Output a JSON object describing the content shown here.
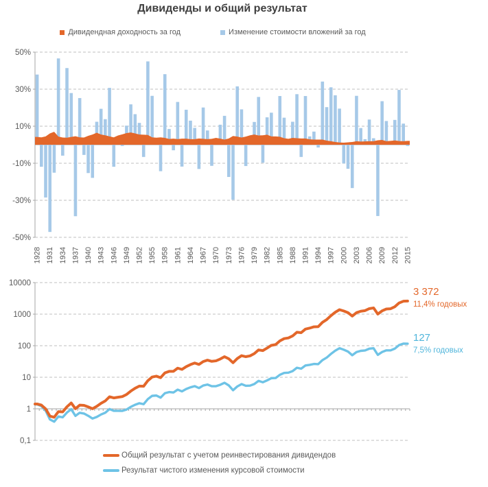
{
  "page": {
    "title": "Дивиденды и общий результат"
  },
  "colors": {
    "orange": "#e3672a",
    "bar_blue": "#a6c9e8",
    "line_blue": "#6ec3e6",
    "annotation_blue": "#4fb5db",
    "gridline": "#bfbfbf",
    "axis": "#a6a6a6",
    "text": "#595959"
  },
  "annual_chart": {
    "legend": [
      {
        "label": "Дивидендная доходность за год",
        "color": "#e3672a"
      },
      {
        "label": "Изменение стоимости вложений за год",
        "color": "#a6c9e8"
      }
    ]
  },
  "cumulative_chart": {
    "annotations": [
      {
        "value": "3 372",
        "rate": "11,4% годовых",
        "color": "#e3672a"
      },
      {
        "value": "127",
        "rate": "7,5% годовых",
        "color": "#4fb5db"
      }
    ],
    "legend": [
      {
        "label": "Общий результат с учетом реинвестирования дивидендов",
        "color": "#e3672a"
      },
      {
        "label": "Результат чистого изменения курсовой стоимости",
        "color": "#6ec3e6"
      }
    ]
  },
  "chart_data": [
    {
      "type": "bar",
      "title": "Дивиденды и общий результат",
      "start_year": 1928,
      "end_year": 2015,
      "x_tick_labels": [
        "1928",
        "1931",
        "1934",
        "1937",
        "1940",
        "1943",
        "1946",
        "1949",
        "1952",
        "1955",
        "1958",
        "1961",
        "1964",
        "1967",
        "1970",
        "1973",
        "1976",
        "1979",
        "1982",
        "1985",
        "1988",
        "1991",
        "1994",
        "1997",
        "2000",
        "2003",
        "2006",
        "2009",
        "2012",
        "2015"
      ],
      "ylim": [
        -50,
        50
      ],
      "ytick_values": [
        50,
        30,
        10,
        -10,
        -30,
        -50
      ],
      "y_tick_labels": [
        "50%",
        "30%",
        "10%",
        "-10%",
        "-30%",
        "-50%"
      ],
      "grid": "dashed-horizontal",
      "legend_position": "top",
      "series": [
        {
          "name": "Дивидендная доходность за год",
          "style": "area",
          "color": "#e3672a",
          "unit": "%",
          "values": [
            4.2,
            4.0,
            4.5,
            6.1,
            7.0,
            4.4,
            3.9,
            3.8,
            4.2,
            4.6,
            4.0,
            3.9,
            4.8,
            5.5,
            6.5,
            5.5,
            5.1,
            4.5,
            4.0,
            5.0,
            5.6,
            6.3,
            6.6,
            6.1,
            5.5,
            5.4,
            5.3,
            4.0,
            3.8,
            4.0,
            3.7,
            3.1,
            3.3,
            3.0,
            3.3,
            3.3,
            3.0,
            3.0,
            3.4,
            3.2,
            3.0,
            3.2,
            3.7,
            3.3,
            2.8,
            3.4,
            4.7,
            4.4,
            3.9,
            4.4,
            5.1,
            5.5,
            5.0,
            5.1,
            5.4,
            4.5,
            4.5,
            4.3,
            3.5,
            3.2,
            3.7,
            3.5,
            3.4,
            3.4,
            2.9,
            2.8,
            2.8,
            2.8,
            2.2,
            1.9,
            1.5,
            1.2,
            1.1,
            1.3,
            1.5,
            1.9,
            1.7,
            1.8,
            1.9,
            1.9,
            2.4,
            2.6,
            1.9,
            2.1,
            2.3,
            2.0,
            1.9,
            2.1
          ]
        },
        {
          "name": "Изменение стоимости вложений за год",
          "style": "bar",
          "color": "#a6c9e8",
          "unit": "%",
          "values": [
            37.9,
            -11.9,
            -28.5,
            -47.1,
            -15.1,
            46.6,
            -5.9,
            41.4,
            27.9,
            -38.6,
            25.2,
            -5.5,
            -15.3,
            -17.9,
            12.4,
            19.4,
            13.8,
            30.7,
            -11.9,
            0.0,
            -0.7,
            10.3,
            21.8,
            16.5,
            11.8,
            -6.6,
            45.0,
            26.4,
            2.6,
            -14.3,
            38.1,
            8.5,
            -3.0,
            23.1,
            -11.8,
            18.9,
            13.0,
            9.1,
            -13.1,
            20.1,
            7.7,
            -11.4,
            0.1,
            10.8,
            15.6,
            -17.4,
            -29.7,
            31.5,
            19.1,
            -11.5,
            1.1,
            12.3,
            25.8,
            -9.7,
            14.8,
            17.3,
            1.4,
            26.3,
            14.6,
            2.0,
            12.4,
            27.3,
            -6.6,
            26.3,
            4.5,
            7.1,
            -1.5,
            34.1,
            20.3,
            31.0,
            26.7,
            19.5,
            -10.1,
            -13.0,
            -23.4,
            26.4,
            9.0,
            3.0,
            13.6,
            3.5,
            -38.5,
            23.5,
            12.8,
            0.0,
            13.4,
            29.6,
            11.4,
            -0.7
          ]
        }
      ]
    },
    {
      "type": "line",
      "yscale": "log",
      "ylim": [
        0.1,
        10000
      ],
      "ytick_values": [
        10000,
        1000,
        100,
        10,
        1,
        0.1
      ],
      "ytick_labels": [
        "10000",
        "1000",
        "100",
        "10",
        "1",
        "0,1"
      ],
      "grid": "dashed-horizontal",
      "legend_position": "bottom",
      "x_range_years": [
        1928,
        2015
      ],
      "series": [
        {
          "name": "Общий результат с учетом реинвестирования дивидендов",
          "color": "#e3672a",
          "start_value": 1,
          "end_label": "3 372",
          "annual_rate_label": "11,4% годовых",
          "derivation": "cumulative product of (1 + price_change% + dividend_yield%) from chart_data[0]"
        },
        {
          "name": "Результат чистого изменения курсовой стоимости",
          "color": "#6ec3e6",
          "start_value": 1,
          "end_label": "127",
          "annual_rate_label": "7,5% годовых",
          "derivation": "cumulative product of (1 + price_change%) from chart_data[0]"
        }
      ]
    }
  ]
}
